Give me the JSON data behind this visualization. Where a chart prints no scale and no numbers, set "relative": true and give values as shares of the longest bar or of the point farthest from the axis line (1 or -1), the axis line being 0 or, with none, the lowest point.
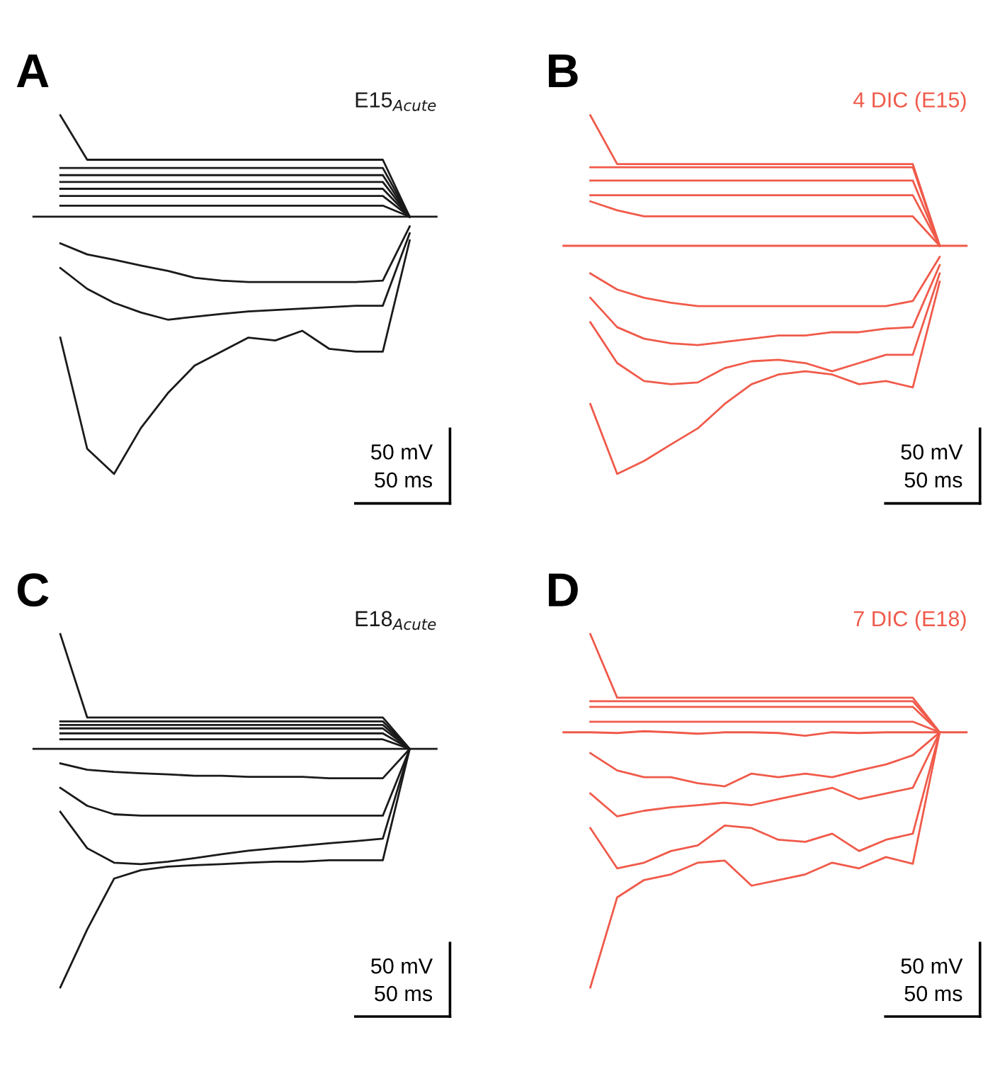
{
  "chart_data": [
    {
      "type": "line",
      "title": "A",
      "subtitle": "E15$_{Acute}$",
      "relative": true,
      "categories": [
        null,
        null,
        null,
        null,
        null,
        null,
        null,
        null,
        null,
        null,
        null,
        null,
        null,
        null,
        null,
        null
      ],
      "annotations": [
        "50 mV",
        "50 ms"
      ],
      "series": [
        {
          "color": "#1a1a1a",
          "values": [
            null,
            1.0,
            0.876,
            0.876,
            0.876,
            0.876,
            0.876,
            0.876,
            0.876,
            0.876,
            0.876,
            0.876,
            0.876,
            0.876,
            0.717,
            null
          ]
        },
        {
          "color": "#1a1a1a",
          "values": [
            null,
            0.853,
            0.853,
            0.853,
            0.853,
            0.853,
            0.853,
            0.853,
            0.853,
            0.853,
            0.853,
            0.853,
            0.853,
            0.853,
            0.717,
            null
          ]
        },
        {
          "color": "#1a1a1a",
          "values": [
            null,
            0.833,
            0.833,
            0.833,
            0.833,
            0.833,
            0.833,
            0.833,
            0.833,
            0.833,
            0.833,
            0.833,
            0.833,
            0.833,
            0.717,
            null
          ]
        },
        {
          "color": "#1a1a1a",
          "values": [
            null,
            0.814,
            0.814,
            0.814,
            0.814,
            0.814,
            0.814,
            0.814,
            0.814,
            0.814,
            0.814,
            0.814,
            0.814,
            0.814,
            0.717,
            null
          ]
        },
        {
          "color": "#1a1a1a",
          "values": [
            null,
            0.795,
            0.795,
            0.795,
            0.795,
            0.795,
            0.795,
            0.795,
            0.795,
            0.795,
            0.795,
            0.795,
            0.795,
            0.795,
            0.717,
            null
          ]
        },
        {
          "color": "#1a1a1a",
          "values": [
            null,
            0.775,
            0.775,
            0.775,
            0.775,
            0.775,
            0.775,
            0.775,
            0.775,
            0.775,
            0.775,
            0.775,
            0.775,
            0.775,
            0.717,
            null
          ]
        },
        {
          "color": "#1a1a1a",
          "values": [
            null,
            0.748,
            0.748,
            0.748,
            0.748,
            0.748,
            0.748,
            0.748,
            0.748,
            0.748,
            0.748,
            0.748,
            0.748,
            0.748,
            0.717,
            null
          ]
        },
        {
          "color": "#1a1a1a",
          "values": [
            0.717,
            0.717,
            0.717,
            0.717,
            0.717,
            0.717,
            0.717,
            0.717,
            0.717,
            0.717,
            0.717,
            0.717,
            0.717,
            0.717,
            0.717,
            0.717
          ]
        },
        {
          "color": "#1a1a1a",
          "values": [
            null,
            0.643,
            0.612,
            0.597,
            0.581,
            0.566,
            0.547,
            0.539,
            0.535,
            0.535,
            0.535,
            0.535,
            0.535,
            0.539,
            0.69,
            null
          ]
        },
        {
          "color": "#1a1a1a",
          "values": [
            null,
            0.574,
            0.516,
            0.477,
            0.45,
            0.43,
            0.438,
            0.446,
            0.453,
            0.457,
            0.461,
            0.465,
            0.469,
            0.469,
            0.671,
            null
          ]
        },
        {
          "color": "#1a1a1a",
          "values": [
            null,
            0.38,
            0.07,
            0.0,
            0.128,
            0.225,
            0.302,
            0.341,
            0.38,
            0.372,
            0.399,
            0.349,
            0.341,
            0.341,
            0.651,
            null
          ]
        }
      ]
    },
    {
      "type": "line",
      "title": "B",
      "subtitle": "4 DIC (E15)",
      "relative": true,
      "categories": [
        null,
        null,
        null,
        null,
        null,
        null,
        null,
        null,
        null,
        null,
        null,
        null,
        null,
        null,
        null,
        null
      ],
      "annotations": [
        "50 mV",
        "50 ms"
      ],
      "series": [
        {
          "color": "#f05a4a",
          "values": [
            null,
            1.0,
            0.864,
            0.864,
            0.864,
            0.864,
            0.864,
            0.864,
            0.864,
            0.864,
            0.864,
            0.864,
            0.864,
            0.864,
            0.636,
            null
          ]
        },
        {
          "color": "#f05a4a",
          "values": [
            null,
            0.855,
            0.855,
            0.855,
            0.855,
            0.855,
            0.855,
            0.855,
            0.855,
            0.855,
            0.855,
            0.855,
            0.855,
            0.855,
            0.636,
            null
          ]
        },
        {
          "color": "#f05a4a",
          "values": [
            null,
            0.818,
            0.818,
            0.818,
            0.818,
            0.818,
            0.818,
            0.818,
            0.818,
            0.818,
            0.818,
            0.818,
            0.818,
            0.818,
            0.636,
            null
          ]
        },
        {
          "color": "#f05a4a",
          "values": [
            null,
            0.777,
            0.777,
            0.777,
            0.777,
            0.777,
            0.777,
            0.777,
            0.777,
            0.777,
            0.777,
            0.777,
            0.777,
            0.777,
            0.636,
            null
          ]
        },
        {
          "color": "#f05a4a",
          "values": [
            null,
            0.76,
            0.735,
            0.718,
            0.718,
            0.718,
            0.718,
            0.718,
            0.718,
            0.718,
            0.718,
            0.718,
            0.718,
            0.718,
            0.636,
            null
          ]
        },
        {
          "color": "#f05a4a",
          "values": [
            0.636,
            0.636,
            0.636,
            0.636,
            0.636,
            0.636,
            0.636,
            0.636,
            0.636,
            0.636,
            0.636,
            0.636,
            0.636,
            0.636,
            0.636,
            0.636
          ]
        },
        {
          "color": "#f05a4a",
          "values": [
            null,
            0.559,
            0.514,
            0.491,
            0.477,
            0.468,
            0.468,
            0.468,
            0.468,
            0.468,
            0.468,
            0.468,
            0.468,
            0.482,
            0.605,
            null
          ]
        },
        {
          "color": "#f05a4a",
          "values": [
            null,
            0.491,
            0.409,
            0.377,
            0.364,
            0.359,
            0.368,
            0.377,
            0.386,
            0.386,
            0.395,
            0.395,
            0.405,
            0.409,
            0.582,
            null
          ]
        },
        {
          "color": "#f05a4a",
          "values": [
            null,
            0.423,
            0.309,
            0.259,
            0.25,
            0.255,
            0.295,
            0.314,
            0.318,
            0.309,
            0.286,
            0.309,
            0.332,
            0.332,
            0.559,
            null
          ]
        },
        {
          "color": "#f05a4a",
          "values": [
            null,
            0.195,
            0.0,
            0.036,
            0.082,
            0.127,
            0.195,
            0.25,
            0.277,
            0.286,
            0.277,
            0.25,
            0.259,
            0.241,
            0.536,
            null
          ]
        }
      ]
    },
    {
      "type": "line",
      "title": "C",
      "subtitle": "E18$_{Acute}$",
      "relative": true,
      "categories": [
        null,
        null,
        null,
        null,
        null,
        null,
        null,
        null,
        null,
        null,
        null,
        null,
        null,
        null,
        null,
        null
      ],
      "annotations": [
        "50 mV",
        "50 ms"
      ],
      "series": [
        {
          "color": "#1a1a1a",
          "values": [
            null,
            1.0,
            0.764,
            0.764,
            0.764,
            0.764,
            0.764,
            0.764,
            0.764,
            0.764,
            0.764,
            0.764,
            0.764,
            0.764,
            0.675,
            null
          ]
        },
        {
          "color": "#1a1a1a",
          "values": [
            null,
            0.753,
            0.753,
            0.753,
            0.753,
            0.753,
            0.753,
            0.753,
            0.753,
            0.753,
            0.753,
            0.753,
            0.753,
            0.753,
            0.675,
            null
          ]
        },
        {
          "color": "#1a1a1a",
          "values": [
            null,
            0.743,
            0.743,
            0.743,
            0.743,
            0.743,
            0.743,
            0.743,
            0.743,
            0.743,
            0.743,
            0.743,
            0.743,
            0.743,
            0.675,
            null
          ]
        },
        {
          "color": "#1a1a1a",
          "values": [
            null,
            0.733,
            0.733,
            0.733,
            0.733,
            0.733,
            0.733,
            0.733,
            0.733,
            0.733,
            0.733,
            0.733,
            0.733,
            0.733,
            0.675,
            null
          ]
        },
        {
          "color": "#1a1a1a",
          "values": [
            null,
            0.719,
            0.719,
            0.719,
            0.719,
            0.719,
            0.719,
            0.719,
            0.719,
            0.719,
            0.719,
            0.719,
            0.719,
            0.719,
            0.675,
            null
          ]
        },
        {
          "color": "#1a1a1a",
          "values": [
            null,
            0.702,
            0.702,
            0.702,
            0.702,
            0.702,
            0.702,
            0.702,
            0.702,
            0.702,
            0.702,
            0.702,
            0.702,
            0.702,
            0.675,
            null
          ]
        },
        {
          "color": "#1a1a1a",
          "values": [
            0.675,
            0.675,
            0.675,
            0.675,
            0.675,
            0.675,
            0.675,
            0.675,
            0.675,
            0.675,
            0.675,
            0.675,
            0.675,
            0.675,
            0.675,
            0.675
          ]
        },
        {
          "color": "#1a1a1a",
          "values": [
            null,
            0.634,
            0.616,
            0.61,
            0.606,
            0.603,
            0.599,
            0.599,
            0.596,
            0.596,
            0.596,
            0.592,
            0.592,
            0.592,
            0.675,
            null
          ]
        },
        {
          "color": "#1a1a1a",
          "values": [
            null,
            0.565,
            0.514,
            0.49,
            0.486,
            0.486,
            0.486,
            0.486,
            0.486,
            0.486,
            0.486,
            0.486,
            0.486,
            0.486,
            0.675,
            null
          ]
        },
        {
          "color": "#1a1a1a",
          "values": [
            null,
            0.497,
            0.394,
            0.353,
            0.349,
            0.356,
            0.366,
            0.377,
            0.387,
            0.394,
            0.401,
            0.408,
            0.414,
            0.421,
            0.675,
            null
          ]
        },
        {
          "color": "#1a1a1a",
          "values": [
            null,
            0.0,
            0.164,
            0.308,
            0.332,
            0.342,
            0.346,
            0.349,
            0.353,
            0.356,
            0.356,
            0.36,
            0.36,
            0.36,
            0.675,
            null
          ]
        }
      ]
    },
    {
      "type": "line",
      "title": "D",
      "subtitle": "7 DIC (E18)",
      "relative": true,
      "categories": [
        null,
        null,
        null,
        null,
        null,
        null,
        null,
        null,
        null,
        null,
        null,
        null,
        null,
        null,
        null,
        null
      ],
      "annotations": [
        "50 mV",
        "50 ms"
      ],
      "series": [
        {
          "color": "#f05a4a",
          "values": [
            null,
            1.0,
            0.82,
            0.82,
            0.82,
            0.82,
            0.82,
            0.82,
            0.82,
            0.82,
            0.82,
            0.82,
            0.82,
            0.82,
            0.722,
            null
          ]
        },
        {
          "color": "#f05a4a",
          "values": [
            null,
            0.81,
            0.81,
            0.81,
            0.81,
            0.81,
            0.81,
            0.81,
            0.81,
            0.81,
            0.81,
            0.81,
            0.81,
            0.81,
            0.722,
            null
          ]
        },
        {
          "color": "#f05a4a",
          "values": [
            null,
            0.794,
            0.794,
            0.794,
            0.794,
            0.794,
            0.794,
            0.794,
            0.794,
            0.794,
            0.794,
            0.794,
            0.794,
            0.794,
            0.722,
            null
          ]
        },
        {
          "color": "#f05a4a",
          "values": [
            null,
            0.752,
            0.752,
            0.752,
            0.752,
            0.752,
            0.752,
            0.752,
            0.752,
            0.752,
            0.752,
            0.752,
            0.752,
            0.752,
            0.722,
            null
          ]
        },
        {
          "color": "#f05a4a",
          "values": [
            0.722,
            0.722,
            0.72,
            0.725,
            0.722,
            0.718,
            0.722,
            0.722,
            0.72,
            0.712,
            0.722,
            0.72,
            0.722,
            0.722,
            0.722,
            0.722
          ]
        },
        {
          "color": "#f05a4a",
          "values": [
            null,
            0.663,
            0.614,
            0.595,
            0.595,
            0.578,
            0.569,
            0.605,
            0.595,
            0.605,
            0.595,
            0.614,
            0.631,
            0.657,
            0.722,
            null
          ]
        },
        {
          "color": "#f05a4a",
          "values": [
            null,
            0.549,
            0.484,
            0.5,
            0.51,
            0.516,
            0.523,
            0.516,
            0.533,
            0.549,
            0.565,
            0.533,
            0.549,
            0.565,
            0.722,
            null
          ]
        },
        {
          "color": "#f05a4a",
          "values": [
            null,
            0.451,
            0.337,
            0.353,
            0.386,
            0.402,
            0.458,
            0.451,
            0.418,
            0.412,
            0.435,
            0.386,
            0.418,
            0.435,
            0.722,
            null
          ]
        },
        {
          "color": "#f05a4a",
          "values": [
            null,
            0.0,
            0.255,
            0.304,
            0.32,
            0.353,
            0.359,
            0.288,
            0.304,
            0.32,
            0.353,
            0.337,
            0.369,
            0.35,
            0.722,
            null
          ]
        }
      ]
    }
  ]
}
